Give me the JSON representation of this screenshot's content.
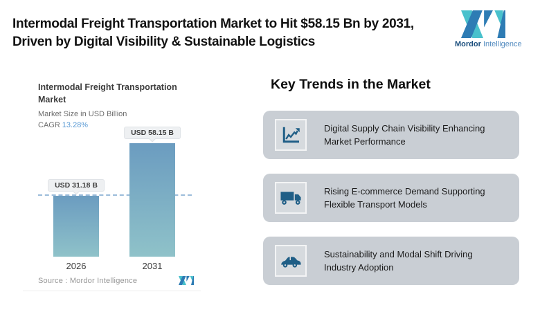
{
  "header": {
    "title_line1": "Intermodal Freight Transportation Market to Hit $58.15 Bn by 2031,",
    "title_line2": "Driven by Digital Visibility & Sustainable Logistics",
    "brand_bold": "Mordor",
    "brand_light": "Intelligence"
  },
  "chart": {
    "title_line1": "Intermodal Freight Transportation",
    "title_line2": "Market",
    "subtitle": "Market Size in USD Billion",
    "cagr_label": "CAGR",
    "cagr_value": "13.28%",
    "source": "Source :  Mordor Intelligence"
  },
  "chart_data": {
    "type": "bar",
    "title": "Intermodal Freight Transportation Market",
    "subtitle": "Market Size in USD Billion",
    "categories": [
      "2026",
      "2031"
    ],
    "values": [
      31.18,
      58.15
    ],
    "value_labels": [
      "USD 31.18 B",
      "USD 58.15 B"
    ],
    "cagr_percent": 13.28,
    "ylim": [
      0,
      58.15
    ],
    "reference_line_at": 31.18,
    "grid": false,
    "legend": false,
    "source": "Mordor Intelligence"
  },
  "trends": {
    "heading": "Key Trends in the Market",
    "items": [
      {
        "icon": "line-chart-icon",
        "text": "Digital Supply Chain Visibility Enhancing Market Performance"
      },
      {
        "icon": "truck-icon",
        "text": "Rising E-commerce Demand Supporting Flexible Transport Models"
      },
      {
        "icon": "car-icon",
        "text": "Sustainability and Modal Shift Driving Industry Adoption"
      }
    ]
  },
  "colors": {
    "brand_teal": "#49c1cc",
    "brand_blue": "#2e7cb4",
    "icon_blue": "#1f5e86",
    "card_gray": "#c9ced4",
    "cagr_blue": "#5b9bd5",
    "bar_gradient_top": "#6b9cc0",
    "bar_gradient_bottom": "#8fc2c9",
    "dashed_line": "#9bbcda"
  }
}
